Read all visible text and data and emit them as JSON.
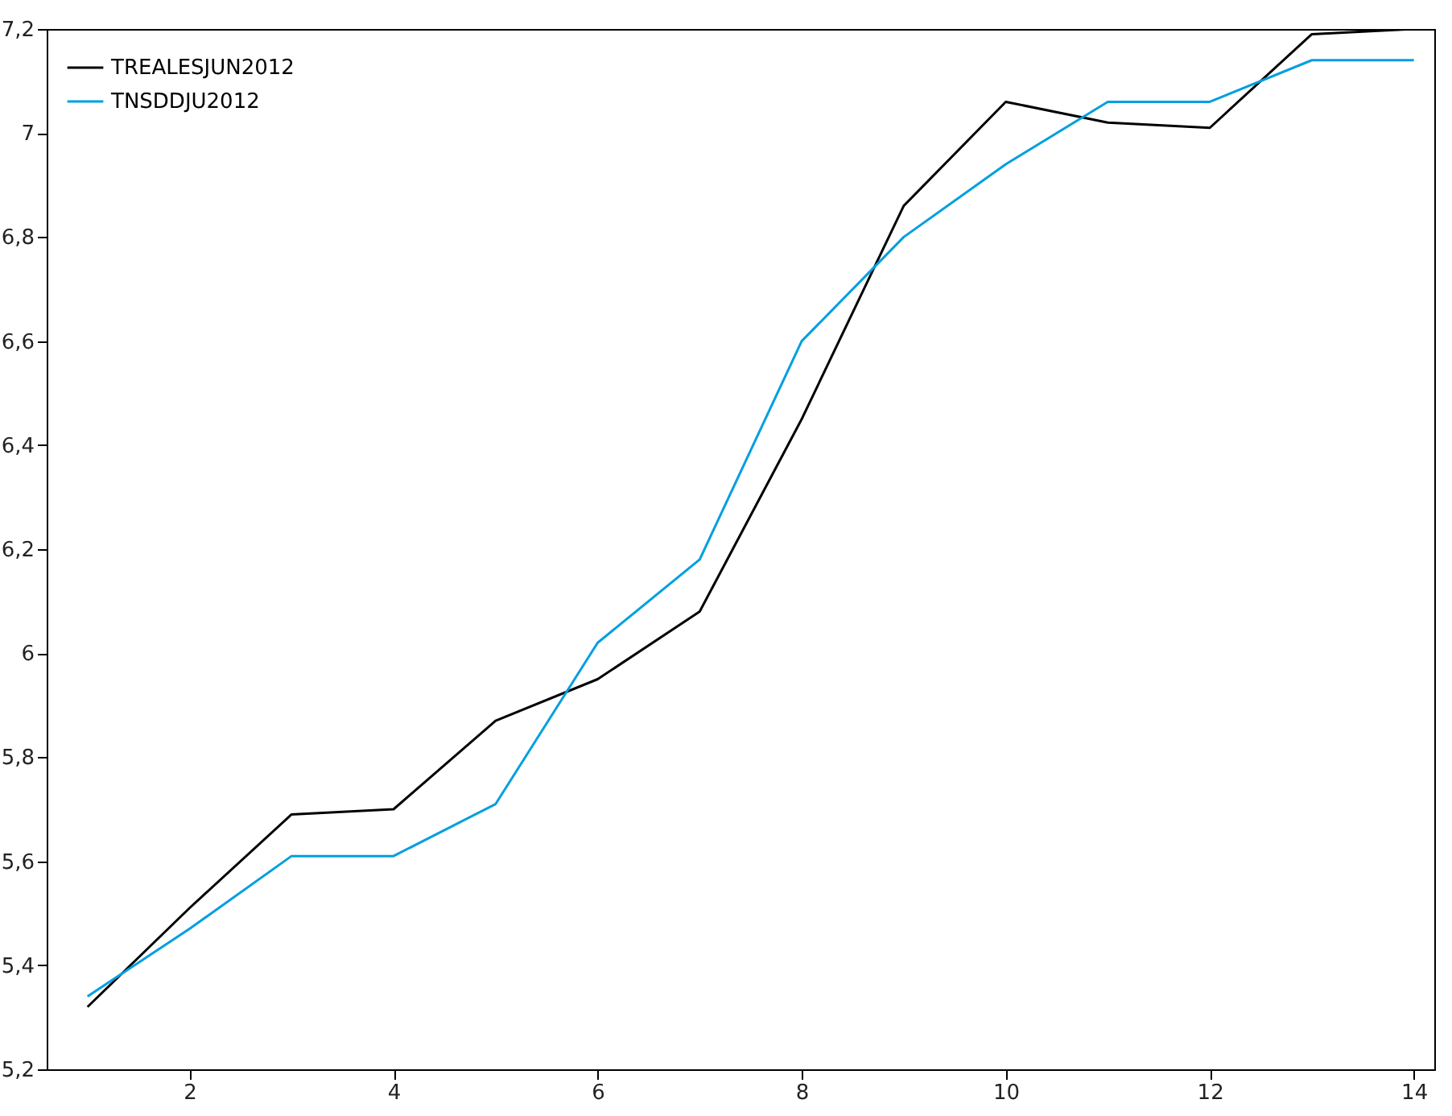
{
  "chart_data": {
    "type": "line",
    "x": [
      1,
      2,
      3,
      4,
      5,
      6,
      7,
      8,
      9,
      10,
      11,
      12,
      13,
      14
    ],
    "series": [
      {
        "name": "TREALESJUN2012",
        "color": "#000000",
        "values": [
          5.32,
          5.51,
          5.69,
          5.7,
          5.87,
          5.95,
          6.08,
          6.45,
          6.86,
          7.06,
          7.02,
          7.01,
          7.19,
          7.2
        ]
      },
      {
        "name": "TNSDDJU2012",
        "color": "#009fe0",
        "values": [
          5.34,
          5.47,
          5.61,
          5.61,
          5.71,
          6.02,
          6.18,
          6.6,
          6.8,
          6.94,
          7.06,
          7.06,
          7.14,
          7.14
        ]
      }
    ],
    "xlim": [
      0.6,
      14.2
    ],
    "xticks": [
      2,
      4,
      6,
      8,
      10,
      12,
      14
    ],
    "ylim": [
      5.2,
      7.2
    ],
    "yticks": [
      {
        "value": 5.2,
        "label": "5,2"
      },
      {
        "value": 5.4,
        "label": "5,4"
      },
      {
        "value": 5.6,
        "label": "5,6"
      },
      {
        "value": 5.8,
        "label": "5,8"
      },
      {
        "value": 6,
        "label": "6"
      },
      {
        "value": 6.2,
        "label": "6,2"
      },
      {
        "value": 6.4,
        "label": "6,4"
      },
      {
        "value": 6.6,
        "label": "6,6"
      },
      {
        "value": 6.8,
        "label": "6,8"
      },
      {
        "value": 7,
        "label": "7"
      },
      {
        "value": 7.2,
        "label": "7,2"
      }
    ],
    "legend": "top left",
    "grid": false
  }
}
